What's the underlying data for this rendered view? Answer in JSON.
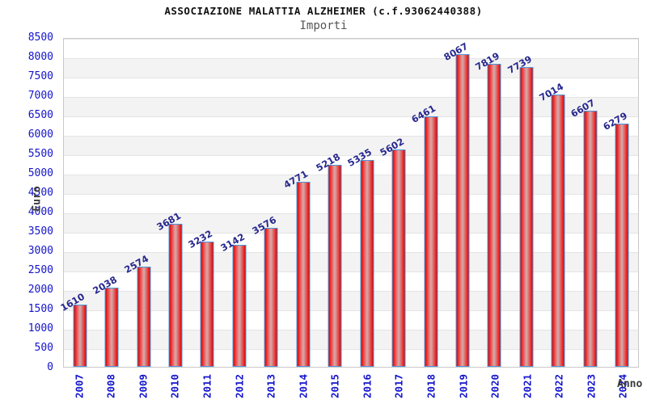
{
  "header": {
    "title": "ASSOCIAZIONE MALATTIA ALZHEIMER (c.f.93062440388)",
    "subtitle": "Importi"
  },
  "chart_data": {
    "type": "bar",
    "title": "ASSOCIAZIONE MALATTIA ALZHEIMER (c.f.93062440388)",
    "subtitle": "Importi",
    "xlabel": "Anno",
    "ylabel": "Euro",
    "categories": [
      "2007",
      "2008",
      "2009",
      "2010",
      "2011",
      "2012",
      "2013",
      "2014",
      "2015",
      "2016",
      "2017",
      "2018",
      "2019",
      "2020",
      "2021",
      "2022",
      "2023",
      "2024"
    ],
    "values": [
      1610,
      2038,
      2574,
      3681,
      3232,
      3142,
      3576,
      4771,
      5218,
      5335,
      5602,
      6461,
      8067,
      7819,
      7739,
      7014,
      6607,
      6279
    ],
    "ylim": [
      0,
      8500
    ],
    "ytick_step": 500,
    "grid": "horizontal",
    "band_shading": true,
    "legend": "none",
    "colors": {
      "bar_fill": "#e02020",
      "bar_border": "#4f97d8",
      "value_label": "#28288f",
      "tick_label": "#1414cc",
      "axis_title": "#3a3a3a",
      "band": "#f3f3f3",
      "gridline": "#e4e4e4"
    }
  }
}
